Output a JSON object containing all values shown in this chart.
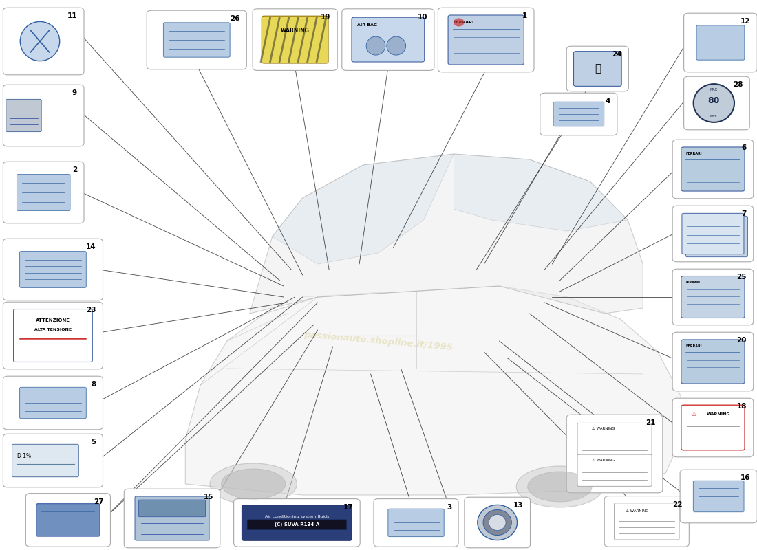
{
  "bg_color": "#ffffff",
  "watermark_color": "#c8b84a",
  "parts": [
    {
      "id": 11,
      "bx": 0.01,
      "by": 0.87,
      "bw": 0.095,
      "bh": 0.11,
      "shape": "circle_icon"
    },
    {
      "id": 9,
      "bx": 0.01,
      "by": 0.74,
      "bw": 0.095,
      "bh": 0.1,
      "shape": "small_card"
    },
    {
      "id": 2,
      "bx": 0.01,
      "by": 0.6,
      "bw": 0.095,
      "bh": 0.1,
      "shape": "blue_rect"
    },
    {
      "id": 14,
      "bx": 0.01,
      "by": 0.46,
      "bw": 0.12,
      "bh": 0.1,
      "shape": "blue_rect_wide"
    },
    {
      "id": 23,
      "bx": 0.01,
      "by": 0.335,
      "bw": 0.12,
      "bh": 0.11,
      "shape": "attenzione"
    },
    {
      "id": 8,
      "bx": 0.01,
      "by": 0.225,
      "bw": 0.12,
      "bh": 0.085,
      "shape": "blue_rect"
    },
    {
      "id": 5,
      "bx": 0.01,
      "by": 0.12,
      "bw": 0.12,
      "bh": 0.085,
      "shape": "headlight_label"
    },
    {
      "id": 27,
      "bx": 0.04,
      "by": 0.012,
      "bw": 0.1,
      "bh": 0.085,
      "shape": "blue_rect_dark"
    },
    {
      "id": 15,
      "bx": 0.17,
      "by": 0.01,
      "bw": 0.115,
      "bh": 0.095,
      "shape": "image_card"
    },
    {
      "id": 17,
      "bx": 0.315,
      "by": 0.012,
      "bw": 0.155,
      "bh": 0.075,
      "shape": "ac_label"
    },
    {
      "id": 3,
      "bx": 0.5,
      "by": 0.012,
      "bw": 0.1,
      "bh": 0.075,
      "shape": "blue_rect"
    },
    {
      "id": 13,
      "bx": 0.62,
      "by": 0.01,
      "bw": 0.075,
      "bh": 0.08,
      "shape": "oil_cap"
    },
    {
      "id": 26,
      "bx": 0.2,
      "by": 0.88,
      "bw": 0.12,
      "bh": 0.095,
      "shape": "blue_rect"
    },
    {
      "id": 19,
      "bx": 0.34,
      "by": 0.878,
      "bw": 0.1,
      "bh": 0.1,
      "shape": "warning_stripe"
    },
    {
      "id": 10,
      "bx": 0.458,
      "by": 0.878,
      "bw": 0.11,
      "bh": 0.1,
      "shape": "airbag_card"
    },
    {
      "id": 1,
      "bx": 0.585,
      "by": 0.875,
      "bw": 0.115,
      "bh": 0.105,
      "shape": "ferrari_card1"
    },
    {
      "id": 24,
      "bx": 0.755,
      "by": 0.84,
      "bw": 0.07,
      "bh": 0.07,
      "shape": "fuel_cap"
    },
    {
      "id": 4,
      "bx": 0.72,
      "by": 0.76,
      "bw": 0.09,
      "bh": 0.065,
      "shape": "blue_rect_sm"
    },
    {
      "id": 12,
      "bx": 0.91,
      "by": 0.875,
      "bw": 0.085,
      "bh": 0.095,
      "shape": "blue_rect"
    },
    {
      "id": 28,
      "bx": 0.91,
      "by": 0.77,
      "bw": 0.075,
      "bh": 0.085,
      "shape": "speed80"
    },
    {
      "id": 6,
      "bx": 0.895,
      "by": 0.645,
      "bw": 0.095,
      "bh": 0.095,
      "shape": "ferrari_card2"
    },
    {
      "id": 7,
      "bx": 0.895,
      "by": 0.53,
      "bw": 0.095,
      "bh": 0.09,
      "shape": "tilted_card"
    },
    {
      "id": 25,
      "bx": 0.895,
      "by": 0.415,
      "bw": 0.095,
      "bh": 0.09,
      "shape": "ferrari_small"
    },
    {
      "id": 20,
      "bx": 0.895,
      "by": 0.295,
      "bw": 0.095,
      "bh": 0.095,
      "shape": "ferrari_card3"
    },
    {
      "id": 18,
      "bx": 0.895,
      "by": 0.175,
      "bw": 0.095,
      "bh": 0.095,
      "shape": "warning_red"
    },
    {
      "id": 21,
      "bx": 0.755,
      "by": 0.11,
      "bw": 0.115,
      "bh": 0.13,
      "shape": "warning_double"
    },
    {
      "id": 22,
      "bx": 0.805,
      "by": 0.012,
      "bw": 0.1,
      "bh": 0.08,
      "shape": "warning_sm"
    },
    {
      "id": 16,
      "bx": 0.905,
      "by": 0.055,
      "bw": 0.09,
      "bh": 0.085,
      "shape": "blue_rect"
    }
  ],
  "line_color": "#333333",
  "car_line_color": "#888888"
}
